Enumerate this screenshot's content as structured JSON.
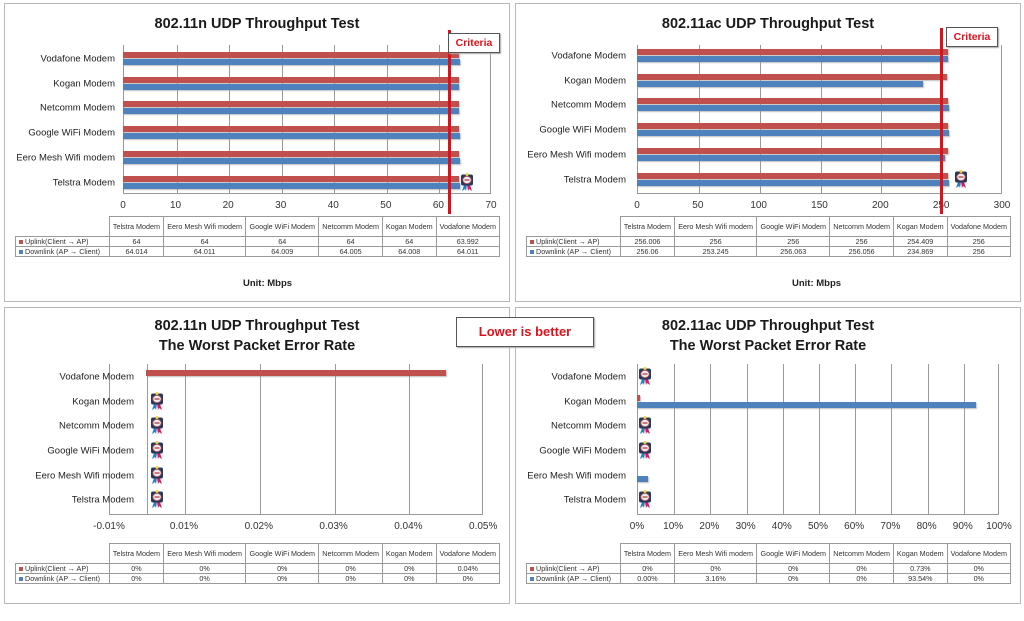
{
  "categories_top_to_bottom": [
    "Vodafone Modem",
    "Kogan Modem",
    "Netcomm Modem",
    "Google WiFi Modem",
    "Eero Mesh Wifi modem",
    "Telstra Modem"
  ],
  "table_columns": [
    "Telstra Modem",
    "Eero Mesh Wifi modem",
    "Google WiFi Modem",
    "Netcomm Modem",
    "Kogan Modem",
    "Vodafone Modem"
  ],
  "legend": {
    "uplink": "Uplink(Client → AP)",
    "downlink": "Downlink (AP → Client)",
    "uplink_color": "#c0504d",
    "downlink_color": "#4f81bd"
  },
  "callouts": {
    "criteria": "Criteria",
    "lower_is_better": "Lower is better",
    "criteria_color": "#e0101a"
  },
  "unit_label": "Unit: Mbps",
  "chart_data": [
    {
      "type": "bar",
      "orientation": "horizontal",
      "title": "802.11n UDP Throughput Test",
      "xlabel": "Unit: Mbps",
      "xlim": [
        0,
        70
      ],
      "ticks": [
        "0",
        "10",
        "20",
        "30",
        "40",
        "50",
        "60",
        "70"
      ],
      "criteria_line": 62,
      "categories": [
        "Telstra Modem",
        "Eero Mesh Wifi modem",
        "Google WiFi Modem",
        "Netcomm Modem",
        "Kogan Modem",
        "Vodafone Modem"
      ],
      "series": [
        {
          "name": "Uplink(Client → AP)",
          "values": [
            64,
            64,
            64,
            64,
            64,
            63.992
          ],
          "labels": [
            "64",
            "64",
            "64",
            "64",
            "64",
            "63.992"
          ]
        },
        {
          "name": "Downlink (AP → Client)",
          "values": [
            64.014,
            64.011,
            64.009,
            64.005,
            64.008,
            64.011
          ],
          "labels": [
            "64.014",
            "64.011",
            "64.009",
            "64.005",
            "64.008",
            "64.011"
          ]
        }
      ],
      "badge_on": [
        "Telstra Modem"
      ],
      "grid": true
    },
    {
      "type": "bar",
      "orientation": "horizontal",
      "title": "802.11ac UDP Throughput Test",
      "xlabel": "Unit: Mbps",
      "xlim": [
        0,
        300
      ],
      "ticks": [
        "0",
        "50",
        "100",
        "150",
        "200",
        "250",
        "300"
      ],
      "criteria_line": 250,
      "categories": [
        "Telstra Modem",
        "Eero Mesh Wifi modem",
        "Google WiFi Modem",
        "Netcomm Modem",
        "Kogan Modem",
        "Vodafone Modem"
      ],
      "series": [
        {
          "name": "Uplink(Client → AP)",
          "values": [
            256.006,
            256,
            256,
            256,
            254.409,
            256
          ],
          "labels": [
            "256.006",
            "256",
            "256",
            "256",
            "254.409",
            "256"
          ]
        },
        {
          "name": "Downlink (AP → Client)",
          "values": [
            256.06,
            253.245,
            256.063,
            256.056,
            234.869,
            256
          ],
          "labels": [
            "256.06",
            "253.245",
            "256.063",
            "256.056",
            "234.869",
            "256"
          ]
        }
      ],
      "badge_on": [
        "Telstra Modem"
      ],
      "grid": true
    },
    {
      "type": "bar",
      "orientation": "horizontal",
      "title": "802.11n UDP Throughput Test",
      "subtitle": "The Worst Packet Error Rate",
      "xlim": [
        -0.01,
        0.05
      ],
      "ticks": [
        "-0.01%",
        "0.01%",
        "0.02%",
        "0.03%",
        "0.04%",
        "0.05%"
      ],
      "categories": [
        "Telstra Modem",
        "Eero Mesh Wifi modem",
        "Google WiFi Modem",
        "Netcomm Modem",
        "Kogan Modem",
        "Vodafone Modem"
      ],
      "series": [
        {
          "name": "Uplink(Client → AP)",
          "values": [
            0,
            0,
            0,
            0,
            0,
            0.04
          ],
          "labels": [
            "0%",
            "0%",
            "0%",
            "0%",
            "0%",
            "0.04%"
          ]
        },
        {
          "name": "Downlink (AP → Client)",
          "values": [
            0,
            0,
            0,
            0,
            0,
            0
          ],
          "labels": [
            "0%",
            "0%",
            "0%",
            "0%",
            "0%",
            "0%"
          ]
        }
      ],
      "badge_on": [
        "Telstra Modem",
        "Eero Mesh Wifi modem",
        "Google WiFi Modem",
        "Netcomm Modem",
        "Kogan Modem"
      ],
      "grid": true
    },
    {
      "type": "bar",
      "orientation": "horizontal",
      "title": "802.11ac UDP Throughput Test",
      "subtitle": "The Worst Packet Error Rate",
      "xlim": [
        0,
        100
      ],
      "ticks": [
        "0%",
        "10%",
        "20%",
        "30%",
        "40%",
        "50%",
        "60%",
        "70%",
        "80%",
        "90%",
        "100%"
      ],
      "categories": [
        "Telstra Modem",
        "Eero Mesh Wifi modem",
        "Google WiFi Modem",
        "Netcomm Modem",
        "Kogan Modem",
        "Vodafone Modem"
      ],
      "series": [
        {
          "name": "Uplink(Client → AP)",
          "values": [
            0,
            0,
            0,
            0,
            0.73,
            0
          ],
          "labels": [
            "0%",
            "0%",
            "0%",
            "0%",
            "0.73%",
            "0%"
          ]
        },
        {
          "name": "Downlink (AP → Client)",
          "values": [
            0,
            3.16,
            0,
            0,
            93.54,
            0
          ],
          "labels": [
            "0.00%",
            "3.16%",
            "0%",
            "0%",
            "93.54%",
            "0%"
          ]
        }
      ],
      "badge_on": [
        "Telstra Modem",
        "Google WiFi Modem",
        "Netcomm Modem",
        "Vodafone Modem"
      ],
      "grid": true
    }
  ]
}
